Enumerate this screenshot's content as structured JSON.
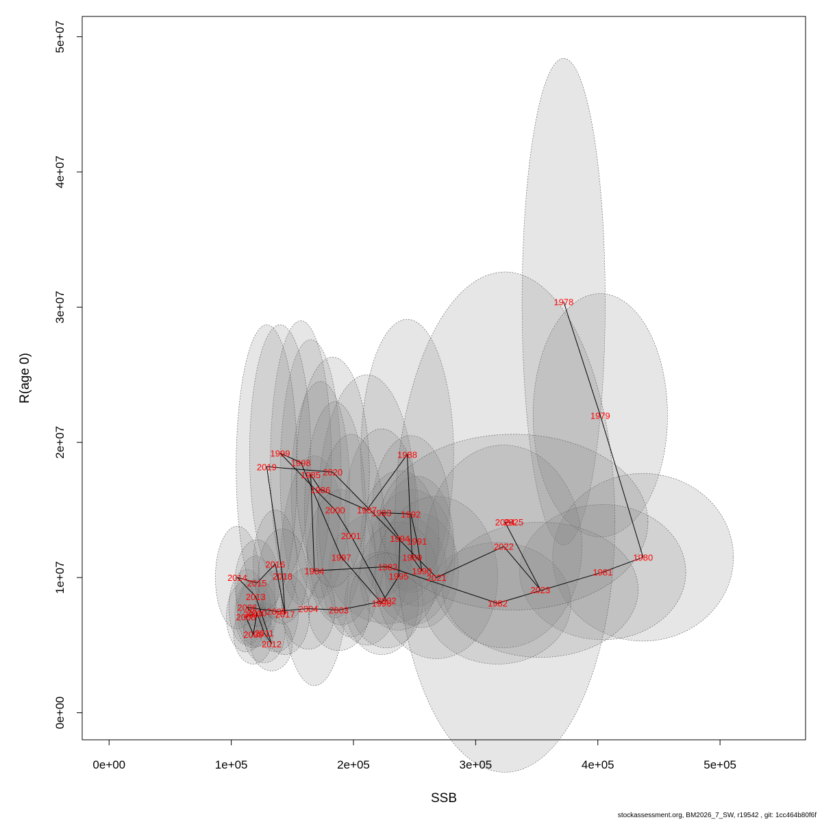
{
  "chart_data": {
    "type": "scatter",
    "title": "",
    "xlabel": "SSB",
    "ylabel": "R(age 0)",
    "xlim": [
      -22000,
      570000
    ],
    "ylim": [
      -2000000,
      51500000
    ],
    "xticks": [
      0,
      100000,
      200000,
      300000,
      400000,
      500000
    ],
    "xtick_labels": [
      "0e+00",
      "1e+05",
      "2e+05",
      "3e+05",
      "4e+05",
      "5e+05"
    ],
    "yticks": [
      0,
      10000000,
      20000000,
      30000000,
      40000000,
      50000000
    ],
    "ytick_labels": [
      "0e+00",
      "1e+07",
      "2e+07",
      "3e+07",
      "4e+07",
      "5e+07"
    ],
    "grid": false,
    "legend": "none",
    "colors": {
      "point_label": "#ff0000",
      "line": "#000000",
      "ellipse_fill": "#808080",
      "ellipse_stroke": "#555555"
    },
    "points": [
      {
        "year": "1978",
        "x": 372000,
        "y": 30400000,
        "wx": 34000,
        "wy": 18000000
      },
      {
        "year": "1979",
        "x": 402000,
        "y": 22000000,
        "wx": 55000,
        "wy": 9000000
      },
      {
        "year": "1980",
        "x": 437000,
        "y": 11500000,
        "wx": 74000,
        "wy": 6200000
      },
      {
        "year": "1981",
        "x": 404000,
        "y": 10400000,
        "wx": 68000,
        "wy": 5000000
      },
      {
        "year": "1982",
        "x": 318000,
        "y": 8100000,
        "wx": 60000,
        "wy": 4500000
      },
      {
        "year": "1983",
        "x": 228000,
        "y": 10800000,
        "wx": 48000,
        "wy": 4200000
      },
      {
        "year": "1984",
        "x": 168000,
        "y": 10500000,
        "wx": 28000,
        "wy": 8500000
      },
      {
        "year": "1985",
        "x": 165000,
        "y": 17600000,
        "wx": 25000,
        "wy": 10000000
      },
      {
        "year": "1986",
        "x": 173000,
        "y": 16500000,
        "wx": 24000,
        "wy": 8000000
      },
      {
        "year": "1987",
        "x": 211000,
        "y": 15000000,
        "wx": 40000,
        "wy": 10000000
      },
      {
        "year": "1988",
        "x": 244000,
        "y": 19100000,
        "wx": 38000,
        "wy": 10000000
      },
      {
        "year": "1989",
        "x": 248000,
        "y": 11500000,
        "wx": 35000,
        "wy": 5000000
      },
      {
        "year": "1990",
        "x": 256000,
        "y": 10500000,
        "wx": 30000,
        "wy": 4200000
      },
      {
        "year": "1991",
        "x": 252000,
        "y": 12700000,
        "wx": 30000,
        "wy": 4800000
      },
      {
        "year": "1992",
        "x": 247000,
        "y": 14700000,
        "wx": 32000,
        "wy": 5800000
      },
      {
        "year": "1993",
        "x": 223000,
        "y": 14800000,
        "wx": 30000,
        "wy": 6200000
      },
      {
        "year": "1994",
        "x": 238000,
        "y": 12900000,
        "wx": 32000,
        "wy": 5000000
      },
      {
        "year": "1995",
        "x": 237000,
        "y": 10100000,
        "wx": 32000,
        "wy": 4000000
      },
      {
        "year": "1996",
        "x": 223000,
        "y": 8100000,
        "wx": 30000,
        "wy": 3800000
      },
      {
        "year": "1997",
        "x": 190000,
        "y": 11500000,
        "wx": 28000,
        "wy": 5000000
      },
      {
        "year": "1998",
        "x": 157000,
        "y": 18500000,
        "wx": 25000,
        "wy": 10500000
      },
      {
        "year": "1999",
        "x": 140000,
        "y": 19200000,
        "wx": 25000,
        "wy": 9500000
      },
      {
        "year": "2000",
        "x": 185000,
        "y": 15000000,
        "wx": 25000,
        "wy": 8000000
      },
      {
        "year": "2001",
        "x": 198000,
        "y": 13100000,
        "wx": 28000,
        "wy": 7500000
      },
      {
        "year": "2002",
        "x": 227000,
        "y": 8300000,
        "wx": 30000,
        "wy": 3500000
      },
      {
        "year": "2003",
        "x": 188000,
        "y": 7600000,
        "wx": 25000,
        "wy": 3000000
      },
      {
        "year": "2004",
        "x": 163000,
        "y": 7700000,
        "wx": 22000,
        "wy": 3000000
      },
      {
        "year": "2005",
        "x": 137000,
        "y": 7500000,
        "wx": 18000,
        "wy": 3000000
      },
      {
        "year": "2006",
        "x": 113000,
        "y": 7800000,
        "wx": 15000,
        "wy": 2800000
      },
      {
        "year": "2007",
        "x": 118000,
        "y": 7300000,
        "wx": 15000,
        "wy": 2500000
      },
      {
        "year": "2008",
        "x": 112000,
        "y": 7100000,
        "wx": 16000,
        "wy": 2600000
      },
      {
        "year": "2009",
        "x": 118000,
        "y": 5800000,
        "wx": 16000,
        "wy": 2200000
      },
      {
        "year": "2010",
        "x": 121000,
        "y": 7400000,
        "wx": 16000,
        "wy": 2500000
      },
      {
        "year": "2011",
        "x": 127000,
        "y": 5900000,
        "wx": 17000,
        "wy": 2200000
      },
      {
        "year": "2012",
        "x": 133000,
        "y": 5100000,
        "wx": 17000,
        "wy": 2000000
      },
      {
        "year": "2013",
        "x": 120000,
        "y": 8600000,
        "wx": 16000,
        "wy": 3000000
      },
      {
        "year": "2014",
        "x": 105000,
        "y": 10000000,
        "wx": 18000,
        "wy": 3800000
      },
      {
        "year": "2015",
        "x": 121000,
        "y": 9600000,
        "wx": 18000,
        "wy": 3200000
      },
      {
        "year": "2016",
        "x": 136000,
        "y": 11000000,
        "wx": 18000,
        "wy": 4000000
      },
      {
        "year": "2017",
        "x": 144000,
        "y": 7300000,
        "wx": 20000,
        "wy": 3000000
      },
      {
        "year": "2018",
        "x": 142000,
        "y": 10100000,
        "wx": 20000,
        "wy": 3500000
      },
      {
        "year": "2019",
        "x": 129000,
        "y": 18200000,
        "wx": 25000,
        "wy": 10500000
      },
      {
        "year": "2020",
        "x": 183000,
        "y": 17800000,
        "wx": 30000,
        "wy": 8500000
      },
      {
        "year": "2021",
        "x": 268000,
        "y": 10000000,
        "wx": 50000,
        "wy": 6000000
      },
      {
        "year": "2022",
        "x": 323000,
        "y": 12300000,
        "wx": 64000,
        "wy": 7500000
      },
      {
        "year": "2023",
        "x": 353000,
        "y": 9100000,
        "wx": 80000,
        "wy": 5000000
      },
      {
        "year": "2024",
        "x": 324000,
        "y": 14100000,
        "wx": 90000,
        "wy": 18500000
      },
      {
        "year": "2025",
        "x": 331000,
        "y": 14100000,
        "wx": 110000,
        "wy": 6500000
      }
    ]
  },
  "footer": "stockassessment.org, BM2026_7_SW, r19542 , git: 1cc464b80f6f"
}
